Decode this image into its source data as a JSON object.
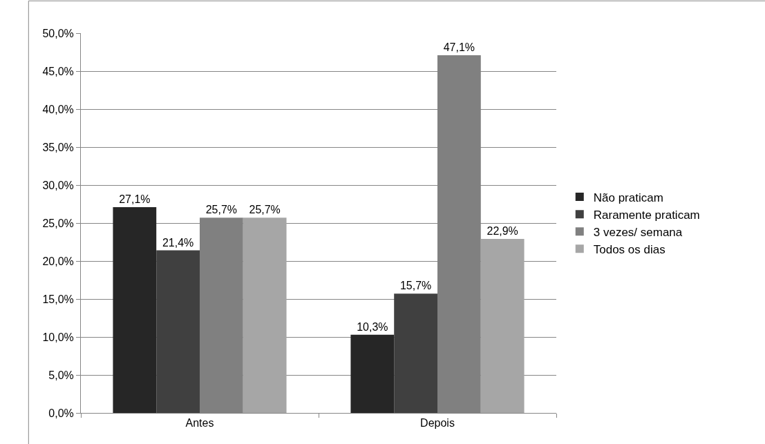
{
  "chart_data": {
    "type": "bar",
    "categories": [
      "Antes",
      "Depois"
    ],
    "series": [
      {
        "name": "Não praticam",
        "color": "#262626",
        "values": [
          27.1,
          10.3
        ],
        "value_labels": [
          "27,1%",
          "10,3%"
        ]
      },
      {
        "name": "Raramente praticam",
        "color": "#404040",
        "values": [
          21.4,
          15.7
        ],
        "value_labels": [
          "21,4%",
          "15,7%"
        ]
      },
      {
        "name": "3 vezes/ semana",
        "color": "#808080",
        "values": [
          25.7,
          47.1
        ],
        "value_labels": [
          "25,7%",
          "47,1%"
        ]
      },
      {
        "name": "Todos os dias",
        "color": "#a6a6a6",
        "values": [
          25.7,
          22.9
        ],
        "value_labels": [
          "25,7%",
          "22,9%"
        ]
      }
    ],
    "ylim": [
      0,
      50
    ],
    "yticks": [
      {
        "value": 0,
        "label": "0,0%"
      },
      {
        "value": 5,
        "label": "5,0%"
      },
      {
        "value": 10,
        "label": "10,0%"
      },
      {
        "value": 15,
        "label": "15,0%"
      },
      {
        "value": 20,
        "label": "20,0%"
      },
      {
        "value": 25,
        "label": "25,0%"
      },
      {
        "value": 30,
        "label": "30,0%"
      },
      {
        "value": 35,
        "label": "35,0%"
      },
      {
        "value": 40,
        "label": "40,0%"
      },
      {
        "value": 45,
        "label": "45,0%"
      },
      {
        "value": 50,
        "label": "50,0%"
      }
    ],
    "grid": "y",
    "legend": "right"
  }
}
